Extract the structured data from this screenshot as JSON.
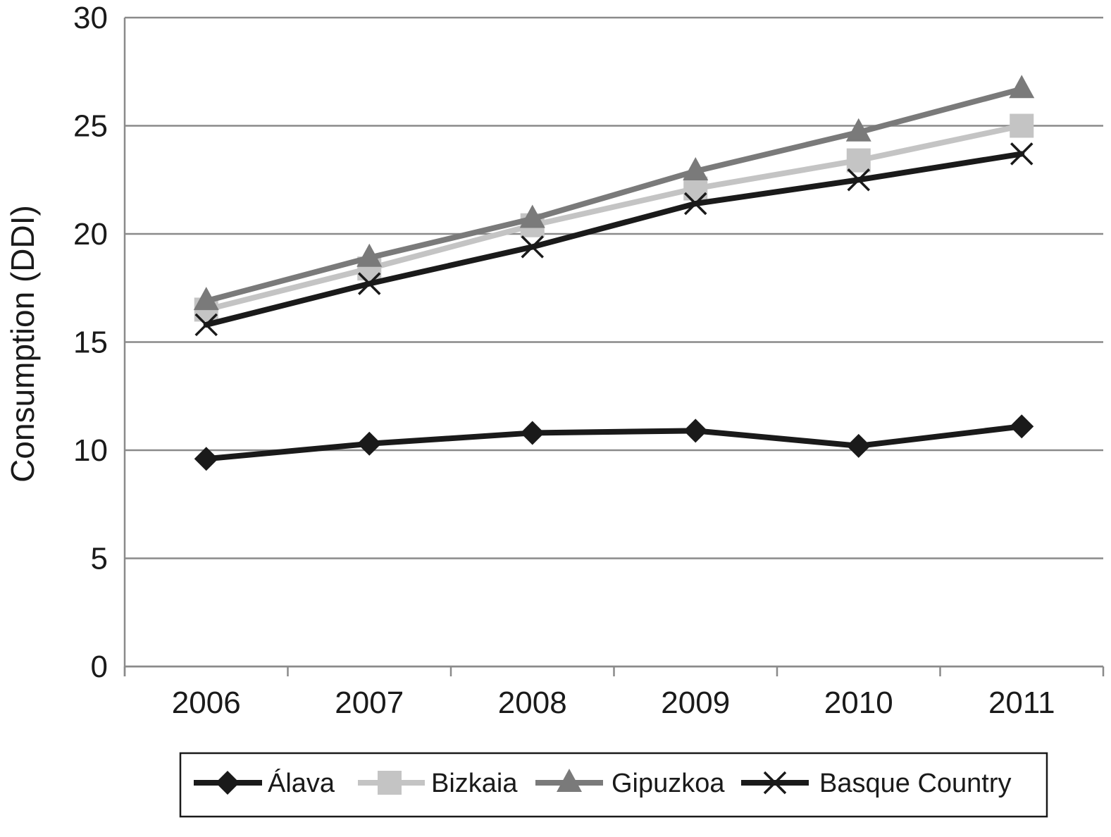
{
  "chart_data": {
    "type": "line",
    "title": "",
    "xlabel": "",
    "ylabel": "Consumption (DDI)",
    "categories": [
      "2006",
      "2007",
      "2008",
      "2009",
      "2010",
      "2011"
    ],
    "ylim": [
      0,
      30
    ],
    "yticks": [
      0,
      5,
      10,
      15,
      20,
      25,
      30
    ],
    "grid": true,
    "legend_position": "bottom",
    "series": [
      {
        "name": "Álava",
        "values": [
          9.6,
          10.3,
          10.8,
          10.9,
          10.2,
          11.1
        ],
        "color": "#1a1a1a",
        "marker": "diamond"
      },
      {
        "name": "Bizkaia",
        "values": [
          16.5,
          18.4,
          20.4,
          22.1,
          23.4,
          25.0
        ],
        "color": "#c4c4c4",
        "marker": "square"
      },
      {
        "name": "Gipuzkoa",
        "values": [
          16.9,
          18.9,
          20.7,
          22.9,
          24.7,
          26.7
        ],
        "color": "#7a7a7a",
        "marker": "triangle"
      },
      {
        "name": "Basque Country",
        "values": [
          15.8,
          17.7,
          19.4,
          21.4,
          22.5,
          23.7
        ],
        "color": "#1a1a1a",
        "marker": "x"
      }
    ]
  }
}
